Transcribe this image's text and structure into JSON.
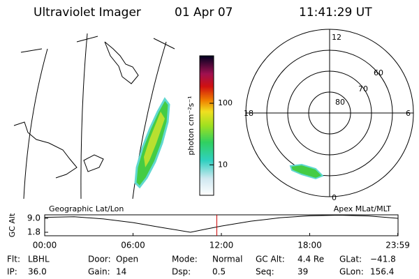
{
  "header": {
    "title": "Ultraviolet Imager",
    "date": "01 Apr 07",
    "time": "11:41:29 UT"
  },
  "colorbar": {
    "label": "photon cm⁻²s⁻¹",
    "ticks": [
      10,
      100
    ],
    "lim": [
      3.2,
      590
    ],
    "log": true
  },
  "polar": {
    "mlt_labels": [
      "12",
      "6",
      "0",
      "18"
    ],
    "lat_labels": [
      "60",
      "70",
      "80"
    ]
  },
  "chart_data": {
    "type": "line",
    "y_label": "GC Alt",
    "left_label": "Geographic Lat/Lon",
    "right_label": "Apex MLat/MLT",
    "x": [
      0,
      2,
      4,
      6,
      8,
      9.9,
      11,
      12,
      14,
      16,
      18,
      20,
      22,
      23.98
    ],
    "series": [
      {
        "color": "#000000",
        "values": [
          9.5,
          9.8,
          8.7,
          6.8,
          4.2,
          1.8,
          3.5,
          5.0,
          7.5,
          9.3,
          10.3,
          10.6,
          10.2,
          9.0
        ]
      }
    ],
    "xlim": [
      0,
      24
    ],
    "xticks": [
      {
        "value": 0,
        "label": "00:00"
      },
      {
        "value": 6,
        "label": "06:00"
      },
      {
        "value": 12,
        "label": "12:00"
      },
      {
        "value": 18,
        "label": "18:00"
      },
      {
        "value": 23.98,
        "label": "23:59"
      }
    ],
    "ylim": [
      0,
      10.8
    ],
    "yticks": [
      {
        "value": 9,
        "label": "9.0"
      },
      1.8
    ],
    "marker_x": 11.69,
    "marker_color": "#cc0000"
  },
  "footer": {
    "rows": [
      [
        [
          "Flt:",
          "LBHL"
        ],
        [
          "Door:",
          "Open"
        ],
        [
          "Mode:",
          "Normal"
        ],
        [
          "GC Alt:",
          "4.4 Re"
        ],
        [
          "GLat:",
          "−41.8"
        ]
      ],
      [
        [
          "IP:",
          "36.0"
        ],
        [
          "Gain:",
          "14"
        ],
        [
          "Dsp:",
          "0.5"
        ],
        [
          "Seq:",
          "39"
        ],
        [
          "GLon:",
          "156.4"
        ]
      ]
    ]
  }
}
